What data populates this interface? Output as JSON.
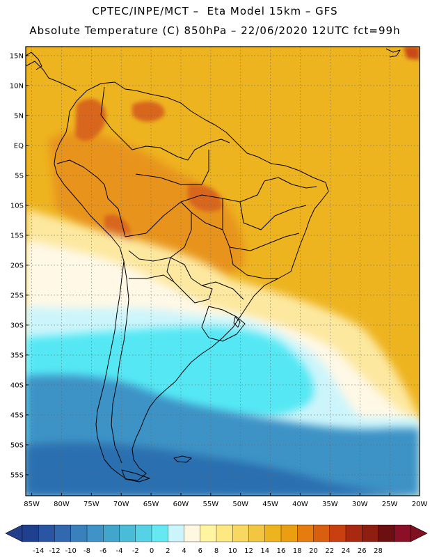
{
  "header": {
    "line1": "CPTEC/INPE/MCT –  Eta Model 15km – GFS",
    "line2": "Absolute Temperature (C) 850hPa – 22/06/2020 12UTC fct=99h"
  },
  "axes": {
    "lat_labels": [
      "15N",
      "10N",
      "5N",
      "EQ",
      "5S",
      "10S",
      "15S",
      "20S",
      "25S",
      "30S",
      "35S",
      "40S",
      "45S",
      "50S",
      "55S"
    ],
    "lon_labels": [
      "85W",
      "80W",
      "75W",
      "70W",
      "65W",
      "60W",
      "55W",
      "50W",
      "45W",
      "40W",
      "35W",
      "30W",
      "25W",
      "20W"
    ]
  },
  "colorbar": {
    "labels": [
      "-14",
      "-12",
      "-10",
      "-8",
      "-6",
      "-4",
      "-2",
      "0",
      "2",
      "4",
      "6",
      "8",
      "10",
      "12",
      "14",
      "16",
      "18",
      "20",
      "22",
      "24",
      "26",
      "28"
    ],
    "colors": [
      "#1f3f8f",
      "#2a55a3",
      "#3168b0",
      "#3a80bd",
      "#3f93c6",
      "#42a6cc",
      "#4bbcd8",
      "#55d2e6",
      "#66e8f2",
      "#ccf5fb",
      "#fff7e0",
      "#fff5a0",
      "#fde882",
      "#f8d860",
      "#f2c640",
      "#eeb420",
      "#eb9e10",
      "#e67b10",
      "#d85e10",
      "#c84010",
      "#a82810",
      "#8e1e10",
      "#6b0f10",
      "#8a1028"
    ],
    "under_color": "#243f8a",
    "over_color": "#801020"
  },
  "map": {
    "domain_lon": [
      -86,
      -20
    ],
    "domain_lat": [
      -58.5,
      16.5
    ],
    "colors": {
      "warm_bg": "#eeb420",
      "hot": "#e8941a",
      "very_hot": "#d8661a",
      "peak": "#c84a18",
      "pale_yellow": "#fde8a0",
      "cream": "#fff8e6",
      "light_cyan": "#ccf5fb",
      "cyan": "#55e8f4",
      "mid_blue": "#42b4d8",
      "blue": "#3d93c6",
      "deep_blue": "#2a6fb0",
      "land_outline": "#000000"
    }
  }
}
